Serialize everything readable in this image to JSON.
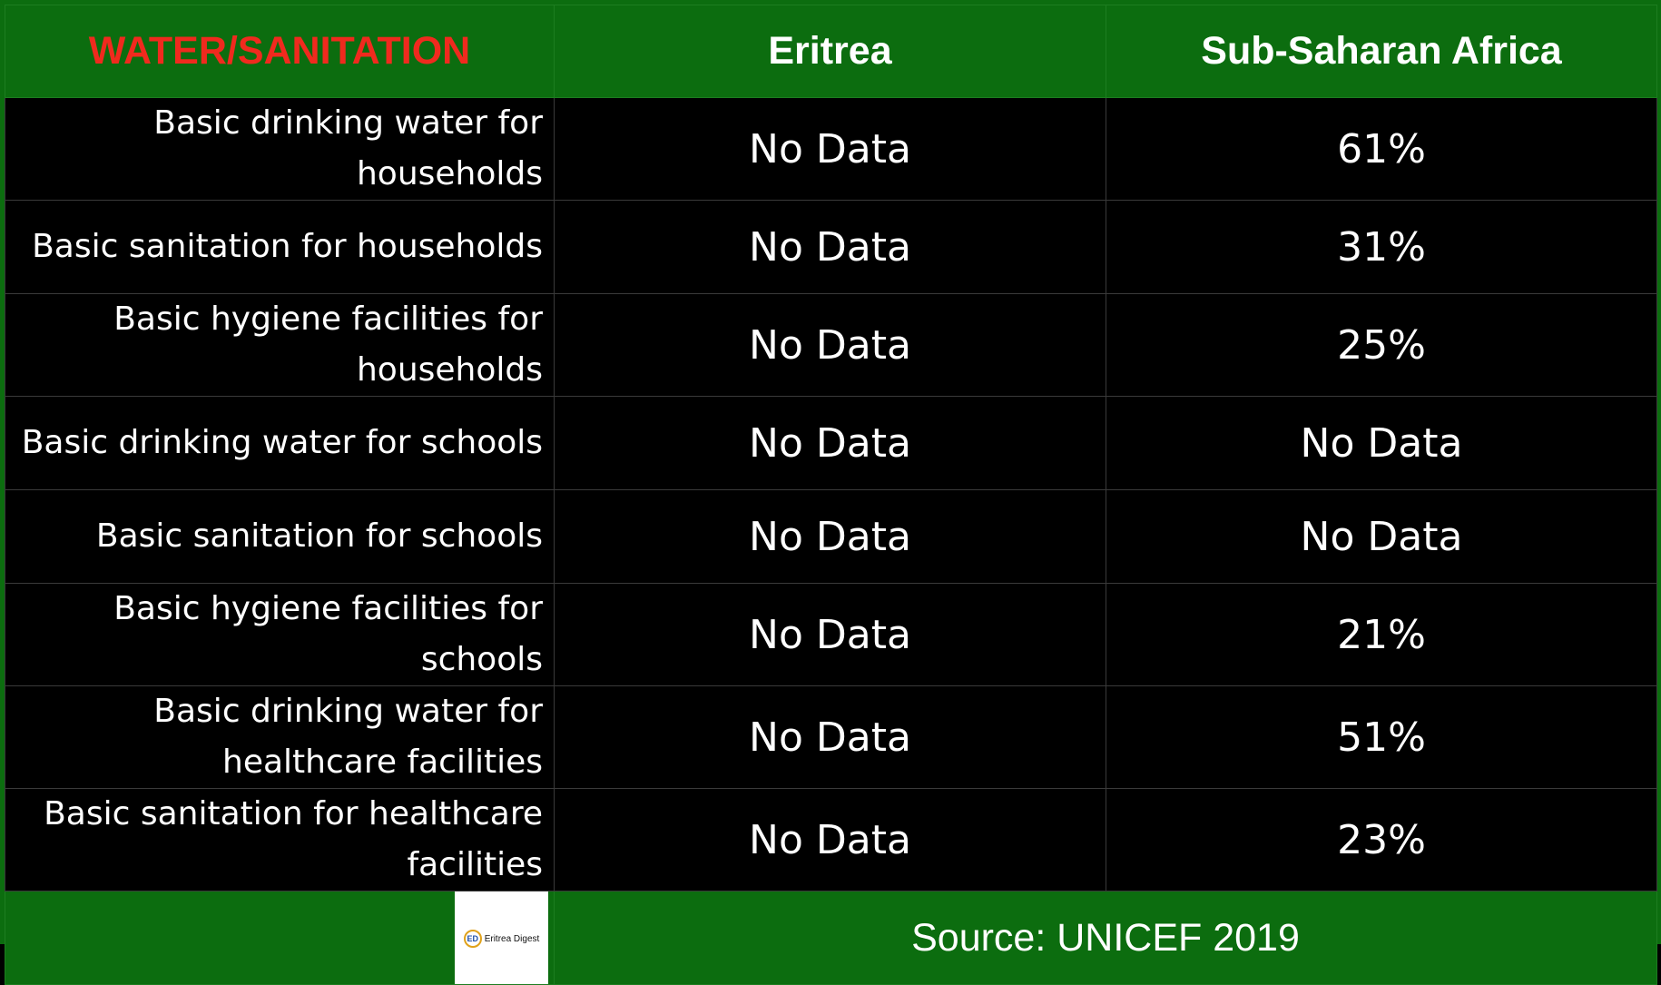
{
  "chart_data": {
    "type": "table",
    "columns": [
      "WATER/SANITATION",
      "Eritrea",
      "Sub-Saharan Africa"
    ],
    "rows": [
      {
        "indicator": "Basic drinking water for households",
        "eritrea": "No Data",
        "ssa": "61%"
      },
      {
        "indicator": "Basic sanitation for households",
        "eritrea": "No Data",
        "ssa": "31%"
      },
      {
        "indicator": "Basic hygiene facilities for households",
        "eritrea": "No Data",
        "ssa": "25%"
      },
      {
        "indicator": "Basic drinking water for schools",
        "eritrea": "No Data",
        "ssa": "No Data"
      },
      {
        "indicator": "Basic sanitation for schools",
        "eritrea": "No Data",
        "ssa": "No Data"
      },
      {
        "indicator": "Basic hygiene facilities for schools",
        "eritrea": "No Data",
        "ssa": "21%"
      },
      {
        "indicator": "Basic drinking water for healthcare facilities",
        "eritrea": "No Data",
        "ssa": "51%"
      },
      {
        "indicator": "Basic sanitation for healthcare facilities",
        "eritrea": "No Data",
        "ssa": "23%"
      }
    ]
  },
  "footer": {
    "source": "Source: UNICEF 2019",
    "logo_text": "Eritrea Digest",
    "logo_mark": "ED"
  },
  "colors": {
    "header_bg": "#0c6d0f",
    "header_label": "#f02a1e",
    "body_bg": "#000000",
    "text": "#ffffff"
  }
}
